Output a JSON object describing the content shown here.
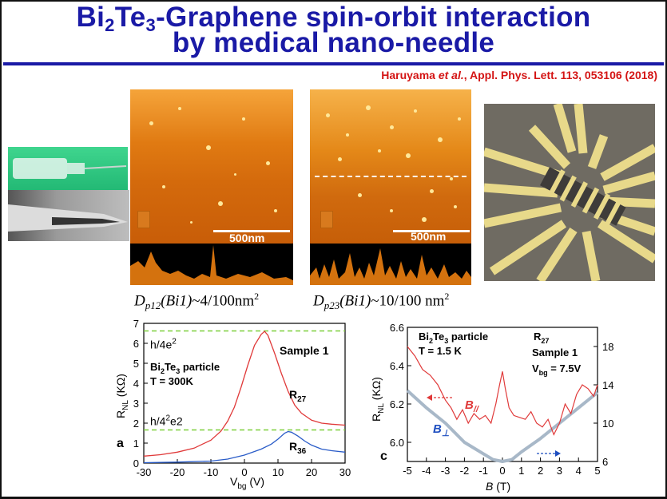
{
  "slide": {
    "title_line1_a": "Bi",
    "title_line1_sub1": "2",
    "title_line1_b": "Te",
    "title_line1_sub2": "3",
    "title_line1_c": "-Graphene spin-orbit interaction",
    "title_line2": "by medical nano-needle",
    "citation_author": "Haruyama ",
    "citation_etal": "et al.",
    "citation_rest": ", Appl. Phys. Lett. 113, 053106 (2018)"
  },
  "images": {
    "afm_left_scale": "500nm",
    "afm_right_scale": "500nm",
    "label_left_pre": "D",
    "label_left_sub": "p12",
    "label_left_mid": "(Bi1)",
    "label_left_val": "~4/100nm",
    "label_left_sup": "2",
    "label_right_pre": "D",
    "label_right_sub": "p23",
    "label_right_mid": "(Bi1)",
    "label_right_val": "~10/100 nm",
    "label_right_sup": "2"
  },
  "chart_data": [
    {
      "type": "line",
      "panel_label": "a",
      "xlabel_main": "V",
      "xlabel_sub": "bg",
      "xlabel_unit": " (V)",
      "ylabel_main": "R",
      "ylabel_sub": "NL",
      "ylabel_unit": " (KΩ)",
      "xlim": [
        -30,
        30
      ],
      "ylim": [
        0,
        7
      ],
      "x_ticks": [
        "-30",
        "-20",
        "-10",
        "0",
        "10",
        "20",
        "30"
      ],
      "y_ticks": [
        "0",
        "1",
        "2",
        "3",
        "4",
        "5",
        "6",
        "7"
      ],
      "ref_lines": [
        {
          "label_a": "h/4e",
          "label_sup": "2",
          "label_b": "",
          "y": 6.62
        },
        {
          "label_a": "h/4",
          "label_sup": "2",
          "label_b": "e2",
          "y": 1.66
        }
      ],
      "annotation_sample": "Sample 1",
      "annotation_particle_a": "Bi",
      "annotation_particle_sub1": "2",
      "annotation_particle_b": "Te",
      "annotation_particle_sub2": "3",
      "annotation_particle_c": " particle",
      "annotation_temp": "T = 300K",
      "series": [
        {
          "name_main": "R",
          "name_sub": "27",
          "color": "#e03a3a",
          "x": [
            -30,
            -25,
            -20,
            -15,
            -10,
            -7,
            -5,
            -3,
            -1,
            1,
            3,
            5,
            6,
            7,
            9,
            11,
            13,
            15,
            17,
            20,
            23,
            26,
            30
          ],
          "y": [
            0.35,
            0.42,
            0.55,
            0.75,
            1.15,
            1.6,
            2.1,
            2.8,
            3.8,
            4.9,
            5.9,
            6.45,
            6.6,
            6.4,
            5.5,
            4.5,
            3.6,
            2.9,
            2.5,
            2.15,
            2.0,
            1.95,
            1.9
          ]
        },
        {
          "name_main": "R",
          "name_sub": "36",
          "color": "#2a5cc8",
          "x": [
            -30,
            -20,
            -10,
            -5,
            0,
            5,
            8,
            10,
            12,
            13,
            14,
            16,
            18,
            20,
            23,
            26,
            30
          ],
          "y": [
            0.02,
            0.05,
            0.1,
            0.2,
            0.4,
            0.7,
            0.95,
            1.2,
            1.5,
            1.58,
            1.55,
            1.35,
            1.1,
            0.9,
            0.7,
            0.62,
            0.55
          ]
        }
      ]
    },
    {
      "type": "line",
      "panel_label": "c",
      "xlabel_main": "B",
      "xlabel_unit": " (T)",
      "ylabel_main": "R",
      "ylabel_sub": "NL",
      "ylabel_unit": " (KΩ)",
      "xlim": [
        -5,
        5
      ],
      "ylim": [
        5.9,
        6.6
      ],
      "y2lim": [
        6,
        20
      ],
      "x_ticks": [
        "-5",
        "-4",
        "-3",
        "-2",
        "-1",
        "0",
        "1",
        "2",
        "3",
        "4",
        "5"
      ],
      "y_ticks": [
        "6.0",
        "6.2",
        "6.4",
        "6.6"
      ],
      "y2_ticks": [
        "6",
        "10",
        "14",
        "18"
      ],
      "annotation_particle_a": "Bi",
      "annotation_particle_sub1": "2",
      "annotation_particle_b": "Te",
      "annotation_particle_sub2": "3",
      "annotation_particle_c": " particle",
      "annotation_temp": "T = 1.5 K",
      "annotation_r_main": "R",
      "annotation_r_sub": "27",
      "annotation_sample": "Sample 1",
      "annotation_vbg_main": "V",
      "annotation_vbg_sub": "bg",
      "annotation_vbg_val": " = 7.5V",
      "series": [
        {
          "name_main": "B",
          "name_sub": "//",
          "color": "#e03a3a",
          "x": [
            -5,
            -4.6,
            -4.2,
            -3.8,
            -3.4,
            -3.0,
            -2.7,
            -2.4,
            -2.1,
            -1.8,
            -1.5,
            -1.2,
            -0.9,
            -0.6,
            -0.35,
            -0.15,
            0,
            0.15,
            0.35,
            0.6,
            0.9,
            1.2,
            1.5,
            1.8,
            2.1,
            2.4,
            2.7,
            3.0,
            3.3,
            3.6,
            3.9,
            4.2,
            4.5,
            4.8,
            5
          ],
          "y": [
            6.5,
            6.45,
            6.38,
            6.35,
            6.3,
            6.22,
            6.18,
            6.12,
            6.17,
            6.1,
            6.15,
            6.12,
            6.14,
            6.1,
            6.2,
            6.3,
            6.37,
            6.28,
            6.18,
            6.14,
            6.13,
            6.12,
            6.16,
            6.1,
            6.08,
            6.12,
            6.04,
            6.1,
            6.2,
            6.15,
            6.25,
            6.3,
            6.28,
            6.24,
            6.3
          ]
        },
        {
          "name_main": "B",
          "name_sub": "⊥",
          "color": "#a8b8c8",
          "x": [
            -5,
            -4,
            -3,
            -2,
            -1,
            -0.5,
            0,
            0.5,
            1,
            2,
            3,
            4,
            5
          ],
          "y": [
            6.27,
            6.18,
            6.1,
            6.0,
            5.94,
            5.91,
            5.9,
            5.91,
            5.95,
            6.02,
            6.1,
            6.18,
            6.26
          ]
        }
      ]
    }
  ]
}
